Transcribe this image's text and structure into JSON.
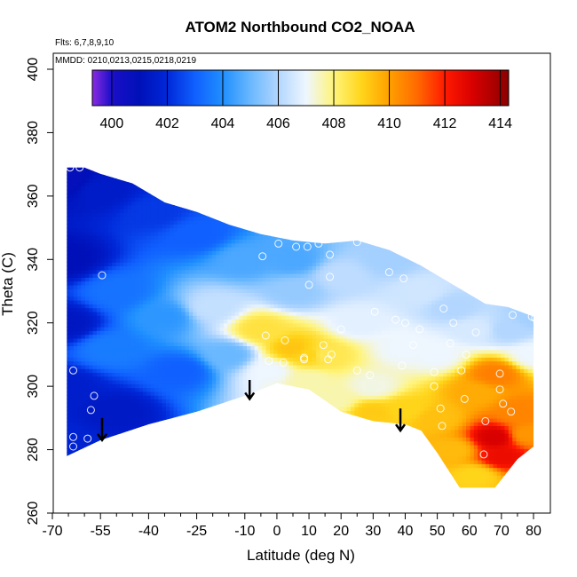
{
  "chart_data": {
    "type": "heatmap",
    "title": "ATOM2 Northbound CO2_NOAA",
    "xlabel": "Latitude (deg N)",
    "ylabel": "Theta (C)",
    "xlim": [
      -70,
      82
    ],
    "ylim": [
      260,
      400
    ],
    "x_ticks": [
      -70,
      -55,
      -40,
      -25,
      -10,
      0,
      10,
      20,
      30,
      40,
      50,
      60,
      70,
      80
    ],
    "x_minor_ticks": [
      -65,
      -60,
      -50,
      -45,
      -35,
      -30,
      -20,
      -15,
      -5,
      5,
      15,
      25,
      35,
      45,
      55,
      65,
      75
    ],
    "y_ticks": [
      260,
      280,
      300,
      320,
      340,
      360,
      380,
      400
    ],
    "notes": {
      "flights": "Flts: 6,7,8,9,10",
      "dates": "MMDD: 0210,0213,0215,0218,0219"
    },
    "colorbar": {
      "min": 399.3,
      "max": 414.3,
      "tick_values": [
        400,
        402,
        404,
        406,
        408,
        410,
        412,
        414
      ],
      "stops": [
        {
          "value": 399.3,
          "color": "#8a2be2"
        },
        {
          "value": 400.0,
          "color": "#1a0fc8"
        },
        {
          "value": 401.0,
          "color": "#0010b8"
        },
        {
          "value": 402.0,
          "color": "#0028d8"
        },
        {
          "value": 403.0,
          "color": "#1060ff"
        },
        {
          "value": 404.0,
          "color": "#1f8fff"
        },
        {
          "value": 405.0,
          "color": "#6ab8ff"
        },
        {
          "value": 406.0,
          "color": "#b2d6ff"
        },
        {
          "value": 407.0,
          "color": "#eef6ff"
        },
        {
          "value": 408.0,
          "color": "#fff47a"
        },
        {
          "value": 409.0,
          "color": "#ffd51a"
        },
        {
          "value": 410.0,
          "color": "#ffa000"
        },
        {
          "value": 411.0,
          "color": "#ff6a00"
        },
        {
          "value": 412.0,
          "color": "#ff1a00"
        },
        {
          "value": 413.0,
          "color": "#d80000"
        },
        {
          "value": 414.3,
          "color": "#8b0000"
        }
      ]
    },
    "field_region": {
      "upper_boundary": [
        [
          -65.5,
          369
        ],
        [
          -60,
          369
        ],
        [
          -55,
          367
        ],
        [
          -45,
          364
        ],
        [
          -35,
          358
        ],
        [
          -25,
          355
        ],
        [
          -15,
          351
        ],
        [
          -5,
          348
        ],
        [
          5,
          346
        ],
        [
          15,
          345
        ],
        [
          25,
          346
        ],
        [
          35,
          343
        ],
        [
          45,
          338
        ],
        [
          55,
          332
        ],
        [
          65,
          326
        ],
        [
          72,
          325
        ],
        [
          80,
          322
        ]
      ],
      "lower_boundary": [
        [
          -65.5,
          278
        ],
        [
          -55,
          283
        ],
        [
          -40,
          288
        ],
        [
          -25,
          292
        ],
        [
          -10,
          297
        ],
        [
          0,
          301
        ],
        [
          10,
          299
        ],
        [
          20,
          292
        ],
        [
          30,
          289
        ],
        [
          40,
          288
        ],
        [
          45,
          286
        ],
        [
          50,
          279
        ],
        [
          57,
          268
        ],
        [
          68,
          268
        ],
        [
          75,
          277
        ],
        [
          80,
          281
        ]
      ]
    },
    "field_anchors": [
      {
        "lat": -66,
        "theta": 365,
        "co2": 400.8
      },
      {
        "lat": -66,
        "theta": 340,
        "co2": 401.0
      },
      {
        "lat": -66,
        "theta": 320,
        "co2": 401.3
      },
      {
        "lat": -66,
        "theta": 300,
        "co2": 401.6
      },
      {
        "lat": -66,
        "theta": 282,
        "co2": 401.8
      },
      {
        "lat": -55,
        "theta": 362,
        "co2": 401.5
      },
      {
        "lat": -50,
        "theta": 330,
        "co2": 403.4
      },
      {
        "lat": -52,
        "theta": 312,
        "co2": 403.6
      },
      {
        "lat": -50,
        "theta": 292,
        "co2": 401.4
      },
      {
        "lat": -38,
        "theta": 355,
        "co2": 402.3
      },
      {
        "lat": -35,
        "theta": 322,
        "co2": 404.2
      },
      {
        "lat": -30,
        "theta": 305,
        "co2": 403.0
      },
      {
        "lat": -25,
        "theta": 348,
        "co2": 403.0
      },
      {
        "lat": -20,
        "theta": 325,
        "co2": 406.3
      },
      {
        "lat": -15,
        "theta": 310,
        "co2": 405.0
      },
      {
        "lat": -10,
        "theta": 340,
        "co2": 404.6
      },
      {
        "lat": -5,
        "theta": 318,
        "co2": 408.6
      },
      {
        "lat": -2,
        "theta": 305,
        "co2": 407.0
      },
      {
        "lat": 5,
        "theta": 340,
        "co2": 404.6
      },
      {
        "lat": 6,
        "theta": 330,
        "co2": 405.6
      },
      {
        "lat": 5,
        "theta": 312,
        "co2": 409.3
      },
      {
        "lat": 10,
        "theta": 310,
        "co2": 409.0
      },
      {
        "lat": 10,
        "theta": 302,
        "co2": 407.6
      },
      {
        "lat": 15,
        "theta": 310,
        "co2": 408.4
      },
      {
        "lat": 18,
        "theta": 296,
        "co2": 407.6
      },
      {
        "lat": 20,
        "theta": 335,
        "co2": 406.2
      },
      {
        "lat": 25,
        "theta": 320,
        "co2": 406.8
      },
      {
        "lat": 30,
        "theta": 300,
        "co2": 407.2
      },
      {
        "lat": 30,
        "theta": 292,
        "co2": 409.2
      },
      {
        "lat": 35,
        "theta": 340,
        "co2": 405.8
      },
      {
        "lat": 40,
        "theta": 312,
        "co2": 407.0
      },
      {
        "lat": 40,
        "theta": 293,
        "co2": 409.0
      },
      {
        "lat": 45,
        "theta": 330,
        "co2": 406.5
      },
      {
        "lat": 50,
        "theta": 310,
        "co2": 407.0
      },
      {
        "lat": 50,
        "theta": 290,
        "co2": 409.4
      },
      {
        "lat": 55,
        "theta": 280,
        "co2": 409.5
      },
      {
        "lat": 55,
        "theta": 325,
        "co2": 406.0
      },
      {
        "lat": 62,
        "theta": 318,
        "co2": 406.6
      },
      {
        "lat": 62,
        "theta": 298,
        "co2": 409.8
      },
      {
        "lat": 62,
        "theta": 272,
        "co2": 409.0
      },
      {
        "lat": 68,
        "theta": 304,
        "co2": 410.6
      },
      {
        "lat": 68,
        "theta": 284,
        "co2": 413.0
      },
      {
        "lat": 70,
        "theta": 278,
        "co2": 412.5
      },
      {
        "lat": 72,
        "theta": 318,
        "co2": 406.0
      },
      {
        "lat": 75,
        "theta": 292,
        "co2": 410.5
      },
      {
        "lat": 78,
        "theta": 285,
        "co2": 410.2
      },
      {
        "lat": 80,
        "theta": 310,
        "co2": 407.0
      },
      {
        "lat": 80,
        "theta": 322,
        "co2": 405.8
      }
    ],
    "sample_points": [
      [
        -64.5,
        369
      ],
      [
        -61.5,
        369
      ],
      [
        -67,
        359
      ],
      [
        -67.5,
        344
      ],
      [
        -54.5,
        335
      ],
      [
        -67.5,
        296
      ],
      [
        -63.5,
        305
      ],
      [
        -57,
        297
      ],
      [
        -58,
        292.5
      ],
      [
        -68,
        284.5
      ],
      [
        -68,
        279
      ],
      [
        -63.5,
        284
      ],
      [
        -63.5,
        281
      ],
      [
        -59,
        283.5
      ],
      [
        -4.5,
        341
      ],
      [
        0.5,
        345
      ],
      [
        6,
        344
      ],
      [
        9.5,
        344
      ],
      [
        13,
        345
      ],
      [
        16.5,
        341.5
      ],
      [
        25,
        345.5
      ],
      [
        30,
        347
      ],
      [
        35,
        336
      ],
      [
        39.5,
        334
      ],
      [
        10,
        332
      ],
      [
        30.5,
        323.5
      ],
      [
        37,
        321
      ],
      [
        40,
        320
      ],
      [
        44.5,
        318
      ],
      [
        52,
        324.5
      ],
      [
        55,
        320
      ],
      [
        62,
        317
      ],
      [
        73.5,
        322.5
      ],
      [
        79.5,
        322
      ],
      [
        80.5,
        321.5
      ],
      [
        16.5,
        334.5
      ],
      [
        14.5,
        313
      ],
      [
        20,
        318
      ],
      [
        -3.5,
        316
      ],
      [
        2.5,
        314.5
      ],
      [
        42.5,
        313
      ],
      [
        54,
        313.5
      ],
      [
        59,
        310
      ],
      [
        -2.5,
        308
      ],
      [
        2,
        307.5
      ],
      [
        8.5,
        308.5
      ],
      [
        16,
        308.5
      ],
      [
        17,
        310
      ],
      [
        25,
        305
      ],
      [
        29,
        303.5
      ],
      [
        39,
        306.5
      ],
      [
        49,
        304.5
      ],
      [
        49,
        300
      ],
      [
        57.5,
        305
      ],
      [
        69.5,
        304
      ],
      [
        69.5,
        299
      ],
      [
        70.5,
        294.5
      ],
      [
        58.5,
        296
      ],
      [
        65,
        289
      ],
      [
        73,
        292
      ],
      [
        51,
        293
      ],
      [
        51.5,
        287.5
      ],
      [
        64.5,
        278.5
      ],
      [
        8.5,
        309
      ]
    ],
    "arrows": [
      {
        "lat": -54.5,
        "theta_top": 290,
        "theta_tip": 283
      },
      {
        "lat": -8.5,
        "theta_top": 302,
        "theta_tip": 296
      },
      {
        "lat": 38.5,
        "theta_top": 293,
        "theta_tip": 286
      }
    ]
  }
}
